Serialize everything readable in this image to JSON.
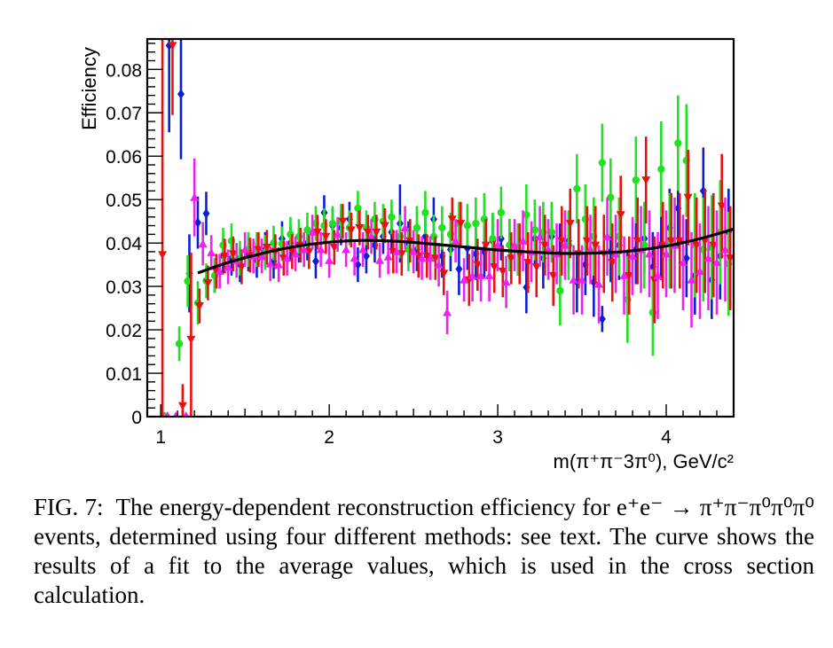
{
  "chart_data": {
    "type": "scatter",
    "xlabel": "m(π⁺π⁻3π⁰), GeV/c²",
    "ylabel": "Efficiency",
    "xlim": [
      0.92,
      4.4
    ],
    "ylim": [
      0,
      0.087
    ],
    "xticks": [
      "1",
      "2",
      "3",
      "4"
    ],
    "yticks": [
      "0",
      "0.01",
      "0.02",
      "0.03",
      "0.04",
      "0.05",
      "0.06",
      "0.07",
      "0.08"
    ],
    "grid": false,
    "legend": "none",
    "series": [
      {
        "marker": "diamond",
        "color": "#0b1fd6",
        "x": [
          1.05,
          1.12,
          1.17,
          1.22,
          1.27,
          1.32,
          1.37,
          1.42,
          1.47,
          1.52,
          1.57,
          1.62,
          1.67,
          1.72,
          1.77,
          1.82,
          1.87,
          1.92,
          1.97,
          2.02,
          2.07,
          2.12,
          2.17,
          2.22,
          2.27,
          2.32,
          2.37,
          2.42,
          2.47,
          2.52,
          2.57,
          2.62,
          2.67,
          2.72,
          2.77,
          2.82,
          2.87,
          2.92,
          2.97,
          3.02,
          3.07,
          3.12,
          3.17,
          3.22,
          3.27,
          3.32,
          3.37,
          3.42,
          3.47,
          3.52,
          3.57,
          3.62,
          3.67,
          3.72,
          3.77,
          3.82,
          3.87,
          3.92,
          3.97,
          4.02,
          4.07,
          4.12,
          4.17,
          4.22,
          4.27,
          4.32,
          4.37
        ],
        "y": [
          0.0855,
          0.0743,
          0.033,
          0.0447,
          0.0468,
          0.0325,
          0.037,
          0.0365,
          0.035,
          0.0375,
          0.036,
          0.0385,
          0.0358,
          0.041,
          0.04,
          0.0395,
          0.04,
          0.0358,
          0.047,
          0.044,
          0.0435,
          0.0455,
          0.035,
          0.037,
          0.0395,
          0.0415,
          0.0425,
          0.0445,
          0.04,
          0.0385,
          0.0415,
          0.0455,
          0.037,
          0.0385,
          0.034,
          0.0388,
          0.0375,
          0.038,
          0.0405,
          0.041,
          0.0395,
          0.0385,
          0.0298,
          0.041,
          0.0365,
          0.0415,
          0.0375,
          0.0405,
          0.031,
          0.035,
          0.031,
          0.0225,
          0.038,
          0.0395,
          0.0325,
          0.0385,
          0.041,
          0.0345,
          0.0395,
          0.0435,
          0.048,
          0.0365,
          0.0325,
          0.052,
          0.0315,
          0.037,
          0.0425
        ],
        "err": [
          0.02,
          0.015,
          0.009,
          0.006,
          0.005,
          0.004,
          0.004,
          0.004,
          0.004,
          0.004,
          0.004,
          0.004,
          0.004,
          0.004,
          0.004,
          0.004,
          0.004,
          0.004,
          0.004,
          0.004,
          0.004,
          0.004,
          0.004,
          0.004,
          0.004,
          0.004,
          0.005,
          0.009,
          0.005,
          0.005,
          0.005,
          0.005,
          0.005,
          0.005,
          0.006,
          0.005,
          0.006,
          0.006,
          0.006,
          0.005,
          0.006,
          0.006,
          0.006,
          0.006,
          0.007,
          0.006,
          0.007,
          0.006,
          0.007,
          0.007,
          0.008,
          0.003,
          0.007,
          0.008,
          0.006,
          0.008,
          0.008,
          0.008,
          0.008,
          0.009,
          0.009,
          0.009,
          0.009,
          0.01,
          0.009,
          0.01,
          0.01
        ]
      },
      {
        "marker": "circle",
        "color": "#22e022",
        "x": [
          1.02,
          1.11,
          1.16,
          1.22,
          1.27,
          1.32,
          1.37,
          1.42,
          1.47,
          1.52,
          1.57,
          1.62,
          1.67,
          1.72,
          1.77,
          1.82,
          1.87,
          1.92,
          1.97,
          2.02,
          2.07,
          2.12,
          2.17,
          2.22,
          2.27,
          2.32,
          2.37,
          2.42,
          2.47,
          2.52,
          2.57,
          2.62,
          2.67,
          2.72,
          2.77,
          2.82,
          2.87,
          2.92,
          2.97,
          3.02,
          3.07,
          3.12,
          3.17,
          3.22,
          3.27,
          3.32,
          3.37,
          3.42,
          3.47,
          3.52,
          3.57,
          3.62,
          3.67,
          3.72,
          3.77,
          3.82,
          3.87,
          3.92,
          3.97,
          4.02,
          4.07,
          4.12,
          4.17,
          4.22,
          4.27,
          4.32,
          4.37
        ],
        "y": [
          0.0002,
          0.0168,
          0.0312,
          0.0262,
          0.0313,
          0.0325,
          0.0395,
          0.0405,
          0.0365,
          0.0385,
          0.0385,
          0.0378,
          0.04,
          0.0398,
          0.042,
          0.0415,
          0.043,
          0.0445,
          0.044,
          0.0445,
          0.045,
          0.0435,
          0.048,
          0.0435,
          0.0455,
          0.045,
          0.046,
          0.0415,
          0.0385,
          0.0435,
          0.047,
          0.0415,
          0.0435,
          0.042,
          0.0445,
          0.044,
          0.0445,
          0.0455,
          0.041,
          0.047,
          0.0395,
          0.0385,
          0.0465,
          0.043,
          0.0425,
          0.0425,
          0.029,
          0.0395,
          0.0525,
          0.0455,
          0.0415,
          0.0585,
          0.0505,
          0.0415,
          0.027,
          0.0545,
          0.0395,
          0.024,
          0.057,
          0.0405,
          0.063,
          0.059,
          0.0395,
          0.0385,
          0.039,
          0.0425,
          0.0352
        ],
        "err": [
          0.0005,
          0.004,
          0.006,
          0.005,
          0.004,
          0.004,
          0.004,
          0.004,
          0.004,
          0.004,
          0.004,
          0.004,
          0.004,
          0.004,
          0.004,
          0.004,
          0.004,
          0.004,
          0.004,
          0.004,
          0.004,
          0.004,
          0.004,
          0.004,
          0.004,
          0.004,
          0.004,
          0.005,
          0.005,
          0.005,
          0.005,
          0.005,
          0.005,
          0.005,
          0.005,
          0.005,
          0.006,
          0.006,
          0.006,
          0.006,
          0.006,
          0.006,
          0.007,
          0.007,
          0.007,
          0.007,
          0.008,
          0.008,
          0.008,
          0.008,
          0.009,
          0.009,
          0.009,
          0.009,
          0.01,
          0.01,
          0.01,
          0.01,
          0.011,
          0.011,
          0.011,
          0.013,
          0.012,
          0.012,
          0.012,
          0.012,
          0.012
        ]
      },
      {
        "marker": "triangle-down",
        "color": "#e81010",
        "x": [
          1.01,
          1.07,
          1.13,
          1.18,
          1.23,
          1.28,
          1.33,
          1.38,
          1.43,
          1.48,
          1.53,
          1.58,
          1.63,
          1.68,
          1.73,
          1.78,
          1.83,
          1.88,
          1.93,
          1.98,
          2.03,
          2.08,
          2.13,
          2.18,
          2.23,
          2.28,
          2.33,
          2.38,
          2.43,
          2.48,
          2.53,
          2.58,
          2.63,
          2.68,
          2.73,
          2.78,
          2.83,
          2.88,
          2.93,
          2.98,
          3.03,
          3.08,
          3.13,
          3.18,
          3.23,
          3.28,
          3.33,
          3.38,
          3.43,
          3.48,
          3.53,
          3.58,
          3.63,
          3.68,
          3.73,
          3.78,
          3.83,
          3.88,
          3.93,
          3.98,
          4.03,
          4.08,
          4.13,
          4.18,
          4.23,
          4.28,
          4.33,
          4.38
        ],
        "y": [
          0.0373,
          0.0855,
          0.0025,
          0.0178,
          0.0255,
          0.0308,
          0.0335,
          0.037,
          0.0375,
          0.0345,
          0.0372,
          0.0385,
          0.039,
          0.038,
          0.0365,
          0.038,
          0.0395,
          0.038,
          0.0425,
          0.0415,
          0.039,
          0.045,
          0.043,
          0.0435,
          0.0425,
          0.0425,
          0.044,
          0.038,
          0.0375,
          0.0405,
          0.037,
          0.037,
          0.0365,
          0.033,
          0.0455,
          0.0445,
          0.0315,
          0.035,
          0.0395,
          0.0345,
          0.0335,
          0.0365,
          0.0375,
          0.0355,
          0.0345,
          0.0395,
          0.0325,
          0.0405,
          0.0445,
          0.0375,
          0.0405,
          0.0395,
          0.0375,
          0.0355,
          0.0465,
          0.0325,
          0.0405,
          0.0545,
          0.0315,
          0.0395,
          0.0405,
          0.0405,
          0.0505,
          0.0395,
          0.0405,
          0.0395,
          0.0485,
          0.0365
        ],
        "err": [
          0.05,
          0.016,
          0.005,
          0.02,
          0.004,
          0.004,
          0.004,
          0.004,
          0.004,
          0.004,
          0.004,
          0.004,
          0.004,
          0.004,
          0.004,
          0.004,
          0.004,
          0.004,
          0.004,
          0.004,
          0.004,
          0.004,
          0.004,
          0.004,
          0.004,
          0.004,
          0.004,
          0.005,
          0.005,
          0.005,
          0.005,
          0.005,
          0.005,
          0.005,
          0.005,
          0.005,
          0.006,
          0.006,
          0.006,
          0.006,
          0.006,
          0.006,
          0.007,
          0.007,
          0.007,
          0.007,
          0.007,
          0.008,
          0.008,
          0.008,
          0.008,
          0.009,
          0.009,
          0.009,
          0.009,
          0.009,
          0.01,
          0.01,
          0.01,
          0.01,
          0.011,
          0.011,
          0.011,
          0.011,
          0.012,
          0.012,
          0.012,
          0.012
        ]
      },
      {
        "marker": "triangle-up",
        "color": "#ee22ee",
        "x": [
          1.04,
          1.09,
          1.15,
          1.2,
          1.25,
          1.3,
          1.35,
          1.4,
          1.45,
          1.5,
          1.55,
          1.6,
          1.65,
          1.7,
          1.75,
          1.8,
          1.85,
          1.9,
          1.95,
          2.0,
          2.05,
          2.1,
          2.15,
          2.2,
          2.25,
          2.3,
          2.35,
          2.4,
          2.45,
          2.5,
          2.55,
          2.6,
          2.65,
          2.7,
          2.75,
          2.8,
          2.85,
          2.9,
          2.95,
          3.0,
          3.05,
          3.1,
          3.15,
          3.2,
          3.25,
          3.3,
          3.35,
          3.4,
          3.45,
          3.5,
          3.55,
          3.6,
          3.65,
          3.7,
          3.75,
          3.8,
          3.85,
          3.9,
          3.95,
          4.0,
          4.05,
          4.1,
          4.15,
          4.2,
          4.25,
          4.3,
          4.35
        ],
        "y": [
          0.0002,
          0.0002,
          0.0002,
          0.0505,
          0.0398,
          0.0378,
          0.0335,
          0.0345,
          0.036,
          0.0385,
          0.037,
          0.037,
          0.0352,
          0.035,
          0.0365,
          0.0375,
          0.0385,
          0.0425,
          0.0385,
          0.036,
          0.042,
          0.0385,
          0.0365,
          0.0385,
          0.0415,
          0.036,
          0.0368,
          0.038,
          0.0435,
          0.038,
          0.0365,
          0.0365,
          0.035,
          0.024,
          0.0405,
          0.0315,
          0.0325,
          0.0325,
          0.0325,
          0.0395,
          0.031,
          0.0395,
          0.0405,
          0.038,
          0.0415,
          0.0385,
          0.0375,
          0.0395,
          0.0315,
          0.0315,
          0.0385,
          0.0305,
          0.0415,
          0.0375,
          0.0325,
          0.037,
          0.0385,
          0.0375,
          0.0325,
          0.0375,
          0.0395,
          0.0355,
          0.0315,
          0.0335,
          0.0365,
          0.0355,
          0.0385
        ],
        "err": [
          0.0005,
          0.0005,
          0.0005,
          0.009,
          0.005,
          0.004,
          0.004,
          0.004,
          0.004,
          0.004,
          0.004,
          0.004,
          0.004,
          0.004,
          0.004,
          0.004,
          0.004,
          0.004,
          0.004,
          0.004,
          0.004,
          0.004,
          0.004,
          0.004,
          0.004,
          0.004,
          0.004,
          0.005,
          0.005,
          0.005,
          0.005,
          0.005,
          0.005,
          0.005,
          0.005,
          0.005,
          0.006,
          0.006,
          0.006,
          0.006,
          0.006,
          0.006,
          0.007,
          0.007,
          0.007,
          0.007,
          0.007,
          0.008,
          0.008,
          0.008,
          0.008,
          0.009,
          0.009,
          0.009,
          0.009,
          0.009,
          0.01,
          0.01,
          0.01,
          0.01,
          0.011,
          0.011,
          0.011,
          0.011,
          0.012,
          0.012,
          0.012
        ]
      }
    ],
    "fit_curve": {
      "color": "#000000",
      "x": [
        1.22,
        1.4,
        1.6,
        1.8,
        2.0,
        2.2,
        2.4,
        2.6,
        2.8,
        3.0,
        3.2,
        3.4,
        3.6,
        3.8,
        4.0,
        4.2,
        4.4
      ],
      "y": [
        0.0331,
        0.0355,
        0.0376,
        0.0392,
        0.0402,
        0.0406,
        0.0404,
        0.0398,
        0.0391,
        0.0384,
        0.0379,
        0.0376,
        0.0377,
        0.0382,
        0.0393,
        0.041,
        0.0432
      ]
    }
  },
  "caption": {
    "label": "FIG. 7:",
    "text": "The energy-dependent reconstruction efficiency for e⁺e⁻ → π⁺π⁻π⁰π⁰π⁰ events, determined using four different methods: see text. The curve shows the results of a fit to the average values, which is used in the cross section calculation."
  }
}
